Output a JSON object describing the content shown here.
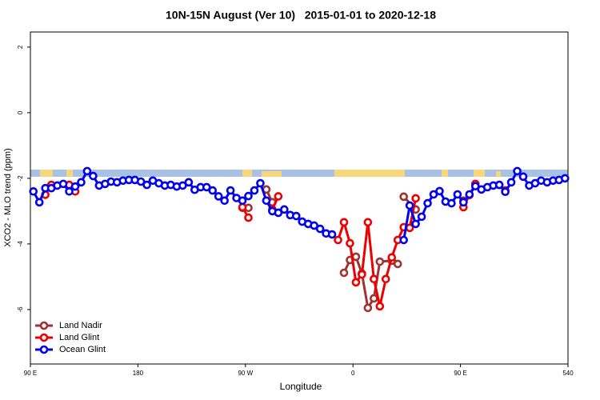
{
  "chart_data": {
    "type": "line",
    "title": "10N-15N August (Ver 10)   2015-01-01 to 2020-12-18",
    "x_label": "Longitude",
    "y_label": "XCO2 - MLO trend (ppm)",
    "xlim": [
      90,
      540
    ],
    "ylim": [
      -7.66,
      2.46
    ],
    "xticks": [
      {
        "value": 90,
        "label": "90 E"
      },
      180,
      {
        "value": 270,
        "label": "90 W"
      },
      {
        "value": 360,
        "label": "0"
      },
      {
        "value": 450,
        "label": "90 E"
      },
      540
    ],
    "yticks": [
      -6,
      -4,
      -2,
      0,
      2
    ],
    "grid": false,
    "legend": "bottom-left",
    "series": [
      {
        "name": "Land Nadir",
        "color": "#a03232",
        "x": [
          267.5,
          272.5,
          null,
          287.5,
          292.5,
          null,
          352.5,
          357.5,
          362.5,
          367.5,
          372.5,
          377.5,
          382.5,
          392.5,
          397.5,
          null,
          402.5,
          412.5,
          null,
          452.5
        ],
        "values": [
          -2.9,
          -2.9,
          null,
          -2.34,
          -2.73,
          null,
          -4.88,
          -4.49,
          -4.39,
          -4.9,
          -5.95,
          -5.66,
          -4.54,
          -4.51,
          -4.61,
          null,
          -2.56,
          -2.95,
          null,
          -2.68
        ]
      },
      {
        "name": "Land Glint",
        "color": "#ee0000",
        "x": [
          102.5,
          107.5,
          null,
          122.5,
          127.5,
          null,
          267.5,
          272.5,
          null,
          292.5,
          297.5,
          null,
          347.5,
          352.5,
          357.5,
          362.5,
          367.5,
          372.5,
          377.5,
          382.5,
          387.5,
          392.5,
          397.5,
          402.5,
          407.5,
          412.5,
          null,
          452.5,
          457.5,
          462.5,
          null,
          482.5,
          487.5
        ],
        "values": [
          -2.5,
          -2.2,
          null,
          -2.2,
          -2.4,
          null,
          -2.88,
          -3.2,
          null,
          -2.95,
          -2.55,
          null,
          -3.88,
          -3.34,
          -3.98,
          -5.17,
          -4.93,
          -3.34,
          -5.07,
          -5.9,
          -5.07,
          -4.41,
          -3.88,
          -3.49,
          -3.51,
          -2.61,
          null,
          -2.88,
          -2.51,
          -2.17,
          null,
          -2.2,
          -2.37
        ]
      },
      {
        "name": "Ocean Glint",
        "color": "#0000ee",
        "x": [
          92.5,
          97.5,
          102.5,
          107.5,
          112.5,
          117.5,
          122.5,
          127.5,
          132.5,
          137.5,
          142.5,
          147.5,
          152.5,
          157.5,
          162.5,
          167.5,
          172.5,
          177.5,
          182.5,
          187.5,
          192.5,
          197.5,
          202.5,
          207.5,
          212.5,
          217.5,
          222.5,
          227.5,
          232.5,
          237.5,
          242.5,
          247.5,
          252.5,
          257.5,
          262.5,
          267.5,
          272.5,
          277.5,
          282.5,
          287.5,
          292.5,
          297.5,
          302.5,
          307.5,
          312.5,
          317.5,
          322.5,
          327.5,
          332.5,
          337.5,
          342.5,
          null,
          402.5,
          407.5,
          412.5,
          417.5,
          422.5,
          427.5,
          432.5,
          437.5,
          442.5,
          447.5,
          452.5,
          457.5,
          462.5,
          467.5,
          472.5,
          477.5,
          482.5,
          487.5,
          492.5,
          497.5,
          502.5,
          507.5,
          512.5,
          517.5,
          522.5,
          527.5,
          532.5,
          537.5
        ],
        "values": [
          -2.4,
          -2.73,
          -2.3,
          -2.3,
          -2.22,
          -2.17,
          -2.4,
          -2.25,
          -2.12,
          -1.78,
          -1.93,
          -2.22,
          -2.17,
          -2.1,
          -2.12,
          -2.07,
          -2.05,
          -2.05,
          -2.1,
          -2.2,
          -2.07,
          -2.15,
          -2.22,
          -2.2,
          -2.25,
          -2.22,
          -2.12,
          -2.35,
          -2.27,
          -2.27,
          -2.37,
          -2.55,
          -2.68,
          -2.37,
          -2.6,
          -2.68,
          -2.54,
          -2.37,
          -2.15,
          -2.68,
          -3.0,
          -3.05,
          -2.95,
          -3.12,
          -3.15,
          -3.32,
          -3.39,
          -3.44,
          -3.54,
          -3.68,
          -3.71,
          null,
          -3.88,
          -2.83,
          -3.39,
          -3.17,
          -2.76,
          -2.49,
          -2.39,
          -2.71,
          -2.76,
          -2.49,
          -2.73,
          -2.49,
          -2.24,
          -2.34,
          -2.27,
          -2.22,
          -2.2,
          -2.41,
          -2.12,
          -1.78,
          -1.95,
          -2.22,
          -2.15,
          -2.07,
          -2.12,
          -2.07,
          -2.05,
          -2.0
        ]
      }
    ]
  }
}
